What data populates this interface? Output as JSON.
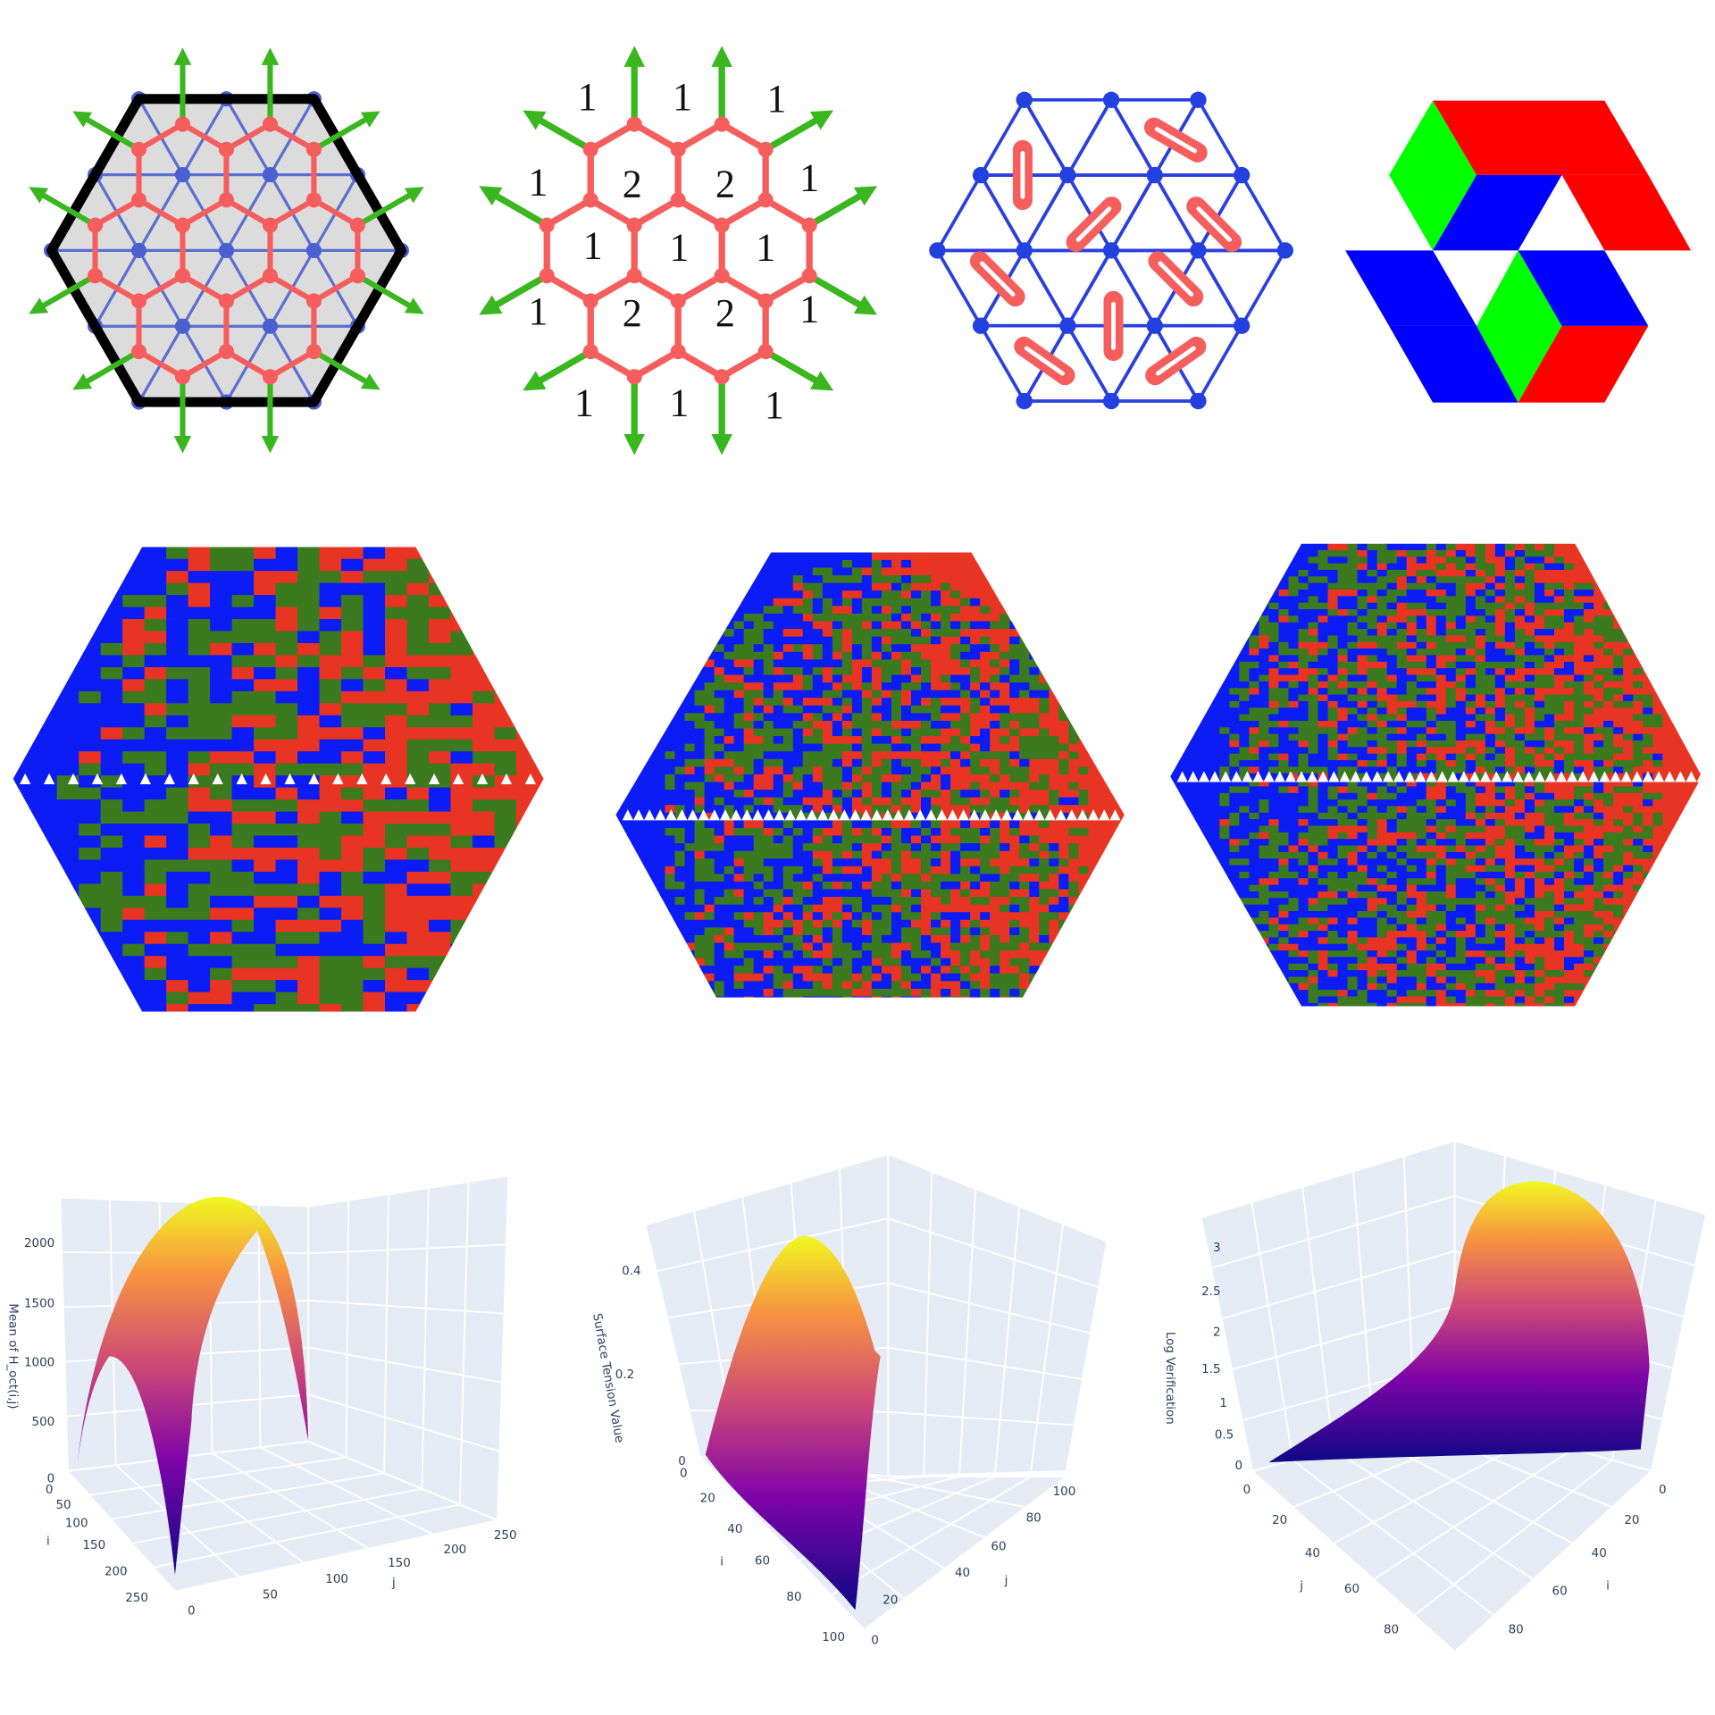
{
  "diagram_faces": {
    "labels": [
      "1",
      "1",
      "1",
      "1",
      "2",
      "2",
      "1",
      "1",
      "1",
      "1",
      "1",
      "2",
      "2",
      "1",
      "1",
      "1",
      "1"
    ]
  },
  "surface_plots": [
    {
      "z_axis_title": "Mean of H_oct(i,j)",
      "z_ticks": [
        2000,
        1500,
        1000,
        500,
        0
      ],
      "i_axis_title": "i",
      "i_ticks": [
        0,
        50,
        100,
        150,
        200,
        250
      ],
      "j_axis_title": "j",
      "j_ticks": [
        0,
        50,
        100,
        150,
        200,
        250
      ]
    },
    {
      "z_axis_title": "Surface Tension Value",
      "z_ticks": [
        0.4,
        0.2,
        0
      ],
      "i_axis_title": "i",
      "i_ticks": [
        0,
        20,
        40,
        60,
        80,
        100
      ],
      "j_axis_title": "j",
      "j_ticks": [
        0,
        20,
        40,
        60,
        80,
        100
      ]
    },
    {
      "z_axis_title": "Log Verification",
      "z_ticks": [
        3,
        2.5,
        2,
        1.5,
        1,
        0.5,
        0
      ],
      "i_axis_title": "i",
      "i_ticks": [
        0,
        20,
        40,
        60,
        80
      ],
      "j_axis_title": "j",
      "j_ticks": [
        0,
        20,
        40,
        60,
        80
      ]
    }
  ]
}
